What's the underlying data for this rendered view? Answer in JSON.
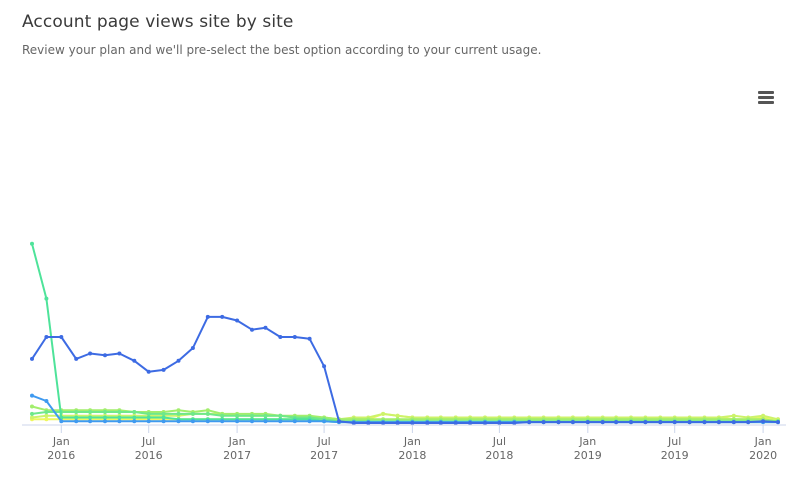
{
  "header": {
    "title": "Account page views site by site",
    "subtitle": "Review your plan and we'll pre-select the best option according to your current usage."
  },
  "toolbar": {
    "menu_icon": "hamburger-menu-icon"
  },
  "chart_data": {
    "type": "line",
    "title": "Account page views site by site",
    "subtitle": "Review your plan and we'll pre-select the best option according to your current usage.",
    "x_axis": {
      "type": "datetime",
      "range": [
        "2015-11-01",
        "2020-02-01"
      ],
      "ticks": [
        {
          "date": "2016-01-01",
          "month": "Jan",
          "year": "2016"
        },
        {
          "date": "2016-07-01",
          "month": "Jul",
          "year": "2016"
        },
        {
          "date": "2017-01-01",
          "month": "Jan",
          "year": "2017"
        },
        {
          "date": "2017-07-01",
          "month": "Jul",
          "year": "2017"
        },
        {
          "date": "2018-01-01",
          "month": "Jan",
          "year": "2018"
        },
        {
          "date": "2018-07-01",
          "month": "Jul",
          "year": "2018"
        },
        {
          "date": "2019-01-01",
          "month": "Jan",
          "year": "2019"
        },
        {
          "date": "2019-07-01",
          "month": "Jul",
          "year": "2019"
        },
        {
          "date": "2020-01-01",
          "month": "Jan",
          "year": "2020"
        }
      ]
    },
    "y_axis": {
      "labels_visible": false,
      "range": [
        0,
        100
      ]
    },
    "grid": false,
    "legend": "none",
    "series": [
      {
        "color": "#3d6be3",
        "x": [
          "2015-11",
          "2015-12",
          "2016-01",
          "2016-02",
          "2016-03",
          "2016-04",
          "2016-05",
          "2016-06",
          "2016-07",
          "2016-08",
          "2016-09",
          "2016-10",
          "2016-11",
          "2016-12",
          "2017-01",
          "2017-02",
          "2017-03",
          "2017-04",
          "2017-05",
          "2017-06",
          "2017-07",
          "2017-08",
          "2017-09",
          "2017-10",
          "2017-11",
          "2017-12",
          "2018-01",
          "2018-02",
          "2018-03",
          "2018-04",
          "2018-05",
          "2018-06",
          "2018-07",
          "2018-08",
          "2018-09",
          "2018-10",
          "2018-11",
          "2018-12",
          "2019-01",
          "2019-02",
          "2019-03",
          "2019-04",
          "2019-05",
          "2019-06",
          "2019-07",
          "2019-08",
          "2019-09",
          "2019-10",
          "2019-11",
          "2019-12",
          "2020-01",
          "2020-02"
        ],
        "y": [
          35,
          47,
          47,
          35,
          38,
          37,
          38,
          34,
          28,
          29,
          34,
          41,
          58,
          58,
          56,
          51,
          52,
          47,
          47,
          46,
          31,
          1,
          0,
          0,
          0,
          0,
          0,
          0,
          0,
          0,
          0,
          0,
          0,
          0,
          0.5,
          0.5,
          0.5,
          0.5,
          0.5,
          0.5,
          0.5,
          0.5,
          0.5,
          0.5,
          0.5,
          0.5,
          0.5,
          0.5,
          0.5,
          0.5,
          1,
          0.5
        ]
      },
      {
        "color": "#3f9af0",
        "x": [
          "2015-11",
          "2015-12",
          "2016-01",
          "2016-02",
          "2016-03",
          "2016-04",
          "2016-05",
          "2016-06",
          "2016-07",
          "2016-08",
          "2016-09",
          "2016-10",
          "2016-11",
          "2016-12",
          "2017-01",
          "2017-02",
          "2017-03",
          "2017-04",
          "2017-05",
          "2017-06",
          "2017-07",
          "2017-08",
          "2017-09",
          "2017-10",
          "2017-11",
          "2017-12",
          "2018-01",
          "2018-02",
          "2018-03",
          "2018-04",
          "2018-05",
          "2018-06",
          "2018-07",
          "2018-08",
          "2018-09",
          "2018-10",
          "2018-11",
          "2018-12",
          "2019-01",
          "2019-02",
          "2019-03",
          "2019-04",
          "2019-05",
          "2019-06",
          "2019-07",
          "2019-08",
          "2019-09",
          "2019-10",
          "2019-11",
          "2019-12",
          "2020-01",
          "2020-02"
        ],
        "y": [
          15,
          12,
          1,
          1,
          1,
          1,
          1,
          1,
          1,
          1,
          1,
          1,
          1,
          1,
          1,
          1,
          1,
          1,
          1,
          1,
          1,
          0.5,
          0.5,
          0.5,
          0.5,
          0.5,
          0.5,
          0.5,
          0.5,
          0.5,
          0.5,
          0.5,
          0.5,
          0.5,
          0.5,
          0.5,
          0.5,
          0.5,
          0.5,
          0.5,
          0.5,
          0.5,
          0.5,
          0.5,
          0.5,
          0.5,
          0.5,
          0.5,
          0.5,
          0.5,
          0.5,
          0.5
        ]
      },
      {
        "color": "#4ee39a",
        "x": [
          "2015-11",
          "2015-12",
          "2016-01",
          "2016-02",
          "2016-03",
          "2016-04",
          "2016-05",
          "2016-06",
          "2016-07",
          "2016-08",
          "2016-09",
          "2016-10",
          "2016-11",
          "2016-12",
          "2017-01",
          "2017-02",
          "2017-03",
          "2017-04",
          "2017-05",
          "2017-06",
          "2017-07",
          "2017-08",
          "2017-09",
          "2017-10",
          "2017-11",
          "2017-12",
          "2018-01",
          "2018-02",
          "2018-03",
          "2018-04",
          "2018-05",
          "2018-06",
          "2018-07",
          "2018-08",
          "2018-09",
          "2018-10",
          "2018-11",
          "2018-12",
          "2019-01",
          "2019-02",
          "2019-03",
          "2019-04",
          "2019-05",
          "2019-06",
          "2019-07",
          "2019-08",
          "2019-09",
          "2019-10",
          "2019-11",
          "2019-12",
          "2020-01",
          "2020-02"
        ],
        "y": [
          98,
          68,
          3,
          3,
          3,
          3,
          3,
          3,
          3,
          3,
          2,
          2,
          2,
          2,
          2,
          2,
          2,
          2,
          2,
          2,
          1,
          0.5,
          0.5,
          0.5,
          0.5,
          0.5,
          0.5,
          0.5,
          0.5,
          0.5,
          0.5,
          0.5,
          0.5,
          0.5,
          0.5,
          0.5,
          0.5,
          0.5,
          0.5,
          0.5,
          0.5,
          0.5,
          0.5,
          0.5,
          0.5,
          0.5,
          0.5,
          0.5,
          0.5,
          0.5,
          0.5,
          0.5
        ]
      },
      {
        "color": "#6fe88a",
        "x": [
          "2015-11",
          "2015-12",
          "2016-01",
          "2016-02",
          "2016-03",
          "2016-04",
          "2016-05",
          "2016-06",
          "2016-07",
          "2016-08",
          "2016-09",
          "2016-10",
          "2016-11",
          "2016-12",
          "2017-01",
          "2017-02",
          "2017-03",
          "2017-04",
          "2017-05",
          "2017-06",
          "2017-07",
          "2017-08",
          "2017-09",
          "2017-10",
          "2017-11",
          "2017-12",
          "2018-01",
          "2018-02",
          "2018-03",
          "2018-04",
          "2018-05",
          "2018-06",
          "2018-07",
          "2018-08",
          "2018-09",
          "2018-10",
          "2018-11",
          "2018-12",
          "2019-01",
          "2019-02",
          "2019-03",
          "2019-04",
          "2019-05",
          "2019-06",
          "2019-07",
          "2019-08",
          "2019-09",
          "2019-10",
          "2019-11",
          "2019-12",
          "2020-01",
          "2020-02"
        ],
        "y": [
          5,
          6,
          6,
          6,
          6,
          6,
          6,
          6,
          5,
          5,
          5,
          5,
          5,
          4,
          4,
          4,
          4,
          4,
          3,
          3,
          2,
          1,
          1,
          1,
          1,
          1,
          1,
          1,
          1,
          1,
          1,
          1,
          1,
          1,
          1,
          1,
          1,
          1,
          1,
          1,
          1,
          1,
          1,
          1,
          1,
          1,
          1,
          1,
          1,
          1,
          1,
          1
        ]
      },
      {
        "color": "#a2ee6c",
        "x": [
          "2015-11",
          "2015-12",
          "2016-01",
          "2016-02",
          "2016-03",
          "2016-04",
          "2016-05",
          "2016-06",
          "2016-07",
          "2016-08",
          "2016-09",
          "2016-10",
          "2016-11",
          "2016-12",
          "2017-01",
          "2017-02",
          "2017-03",
          "2017-04",
          "2017-05",
          "2017-06",
          "2017-07",
          "2017-08",
          "2017-09",
          "2017-10",
          "2017-11",
          "2017-12",
          "2018-01",
          "2018-02",
          "2018-03",
          "2018-04",
          "2018-05",
          "2018-06",
          "2018-07",
          "2018-08",
          "2018-09",
          "2018-10",
          "2018-11",
          "2018-12",
          "2019-01",
          "2019-02",
          "2019-03",
          "2019-04",
          "2019-05",
          "2019-06",
          "2019-07",
          "2019-08",
          "2019-09",
          "2019-10",
          "2019-11",
          "2019-12",
          "2020-01",
          "2020-02"
        ],
        "y": [
          9,
          7,
          7,
          7,
          7,
          7,
          7,
          6,
          6,
          6,
          7,
          6,
          7,
          5,
          5,
          5,
          5,
          4,
          4,
          4,
          3,
          2,
          2,
          2,
          2,
          2,
          2,
          2,
          2,
          2,
          2,
          2,
          2,
          2,
          2,
          2,
          2,
          2,
          2,
          2,
          2,
          2,
          2,
          2,
          2,
          2,
          2,
          2,
          2,
          2,
          2,
          1
        ]
      },
      {
        "color": "#cdf36a",
        "x": [
          "2015-11",
          "2015-12",
          "2016-01",
          "2016-02",
          "2016-03",
          "2016-04",
          "2016-05",
          "2016-06",
          "2016-07",
          "2016-08",
          "2016-09",
          "2016-10",
          "2016-11",
          "2016-12",
          "2017-01",
          "2017-02",
          "2017-03",
          "2017-04",
          "2017-05",
          "2017-06",
          "2017-07",
          "2017-08",
          "2017-09",
          "2017-10",
          "2017-11",
          "2017-12",
          "2018-01",
          "2018-02",
          "2018-03",
          "2018-04",
          "2018-05",
          "2018-06",
          "2018-07",
          "2018-08",
          "2018-09",
          "2018-10",
          "2018-11",
          "2018-12",
          "2019-01",
          "2019-02",
          "2019-03",
          "2019-04",
          "2019-05",
          "2019-06",
          "2019-07",
          "2019-08",
          "2019-09",
          "2019-10",
          "2019-11",
          "2019-12",
          "2020-01",
          "2020-02"
        ],
        "y": [
          3,
          4,
          4,
          4,
          4,
          4,
          4,
          4,
          4,
          4,
          4,
          5,
          5,
          5,
          4,
          4,
          4,
          4,
          3,
          3,
          3,
          2,
          3,
          3,
          5,
          4,
          3,
          3,
          3,
          3,
          3,
          3,
          3,
          3,
          3,
          3,
          3,
          3,
          3,
          3,
          3,
          3,
          3,
          3,
          3,
          3,
          3,
          3,
          4,
          3,
          4,
          2
        ]
      },
      {
        "color": "#eef75e",
        "x": [
          "2015-11",
          "2015-12",
          "2016-01",
          "2016-02",
          "2016-03",
          "2016-04",
          "2016-05",
          "2016-06",
          "2016-07",
          "2016-08",
          "2016-09",
          "2016-10",
          "2016-11",
          "2016-12",
          "2017-01",
          "2017-02",
          "2017-03",
          "2017-04",
          "2017-05",
          "2017-06",
          "2017-07",
          "2017-08",
          "2017-09",
          "2017-10",
          "2017-11",
          "2017-12",
          "2018-01",
          "2018-02",
          "2018-03",
          "2018-04",
          "2018-05",
          "2018-06",
          "2018-07",
          "2018-08",
          "2018-09",
          "2018-10",
          "2018-11",
          "2018-12",
          "2019-01",
          "2019-02",
          "2019-03",
          "2019-04",
          "2019-05",
          "2019-06",
          "2019-07",
          "2019-08",
          "2019-09",
          "2019-10",
          "2019-11",
          "2019-12",
          "2020-01",
          "2020-02"
        ],
        "y": [
          2,
          2,
          2,
          2,
          2,
          2,
          2,
          2,
          2,
          2,
          2,
          2,
          2,
          2,
          2,
          2,
          2,
          2,
          2,
          2,
          2,
          1,
          1,
          2,
          5,
          4,
          3,
          3,
          3,
          3,
          3,
          3,
          3,
          2,
          2,
          2,
          3,
          3,
          2,
          2,
          2,
          2,
          2,
          2,
          2,
          2,
          2,
          3,
          2,
          2,
          3,
          2
        ]
      }
    ]
  }
}
